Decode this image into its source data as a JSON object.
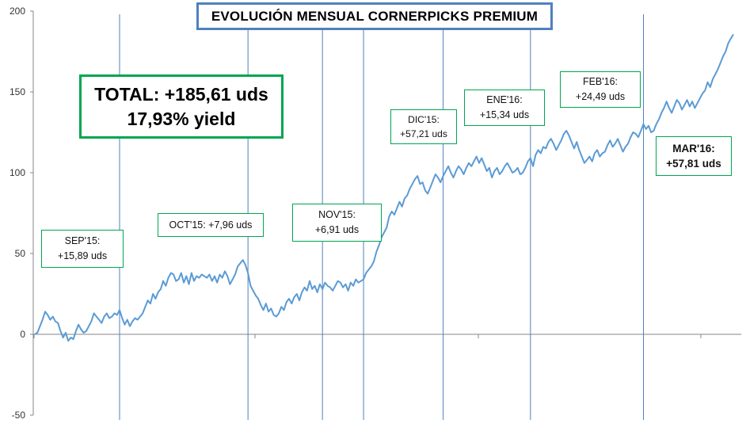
{
  "title": "EVOLUCIÓN MENSUAL CORNERPICKS PREMIUM",
  "total": {
    "line1": "TOTAL: +185,61 uds",
    "line2": "17,93% yield"
  },
  "months": [
    {
      "name": "SEP'15:",
      "value": "+15,89 uds"
    },
    {
      "name": "OCT'15: +7,96 uds",
      "value": ""
    },
    {
      "name": "NOV'15:",
      "value": "+6,91 uds"
    },
    {
      "name": "DIC'15:",
      "value": "+57,21 uds"
    },
    {
      "name": "ENE'16:",
      "value": "+15,34 uds"
    },
    {
      "name": "FEB'16:",
      "value": "+24,49 uds"
    },
    {
      "name": "MAR'16:",
      "value": "+57,81 uds"
    }
  ],
  "colors": {
    "line": "#5b9bd5",
    "separator": "#4f81bd",
    "title_border": "#4f81bd",
    "box_border": "#00a650"
  },
  "chart_data": {
    "type": "line",
    "title": "EVOLUCIÓN MENSUAL CORNERPICKS PREMIUM",
    "xlabel": "",
    "ylabel": "",
    "ylim": [
      -50,
      200
    ],
    "yticks": [
      "200",
      "150",
      "100",
      "50",
      "0",
      "-50"
    ],
    "grid": false,
    "month_boundaries_index": [
      33,
      83,
      112,
      128,
      159,
      193,
      237
    ],
    "series": [
      {
        "values": [
          0,
          1,
          5,
          9,
          14,
          12,
          9,
          11,
          8,
          7,
          2,
          -2,
          1,
          -4,
          -2,
          -3,
          2,
          6,
          3,
          1,
          2,
          5,
          8,
          13,
          11,
          9,
          7,
          11,
          13,
          10,
          11,
          13,
          12,
          15,
          10,
          6,
          9,
          5,
          8,
          10,
          9,
          11,
          13,
          17,
          21,
          19,
          25,
          22,
          26,
          28,
          33,
          30,
          35,
          38,
          37,
          33,
          34,
          38,
          32,
          36,
          31,
          38,
          33,
          36,
          35,
          37,
          36,
          35,
          37,
          33,
          36,
          32,
          37,
          35,
          39,
          36,
          31,
          34,
          37,
          42,
          44,
          46,
          43,
          38,
          30,
          27,
          24,
          22,
          18,
          15,
          19,
          14,
          16,
          12,
          11,
          13,
          17,
          15,
          20,
          22,
          19,
          23,
          25,
          21,
          26,
          29,
          27,
          33,
          28,
          30,
          26,
          31,
          28,
          32,
          30,
          29,
          27,
          30,
          33,
          32,
          29,
          31,
          27,
          32,
          30,
          34,
          32,
          33,
          34,
          38,
          40,
          42,
          45,
          51,
          55,
          60,
          63,
          66,
          73,
          76,
          74,
          78,
          82,
          79,
          84,
          86,
          90,
          93,
          96,
          98,
          93,
          94,
          89,
          87,
          91,
          95,
          99,
          97,
          94,
          98,
          101,
          104,
          100,
          97,
          101,
          104,
          102,
          99,
          103,
          106,
          104,
          107,
          110,
          106,
          109,
          105,
          101,
          103,
          97,
          101,
          103,
          99,
          101,
          104,
          106,
          103,
          100,
          101,
          103,
          99,
          100,
          103,
          107,
          109,
          104,
          111,
          114,
          112,
          116,
          115,
          119,
          121,
          118,
          114,
          117,
          120,
          124,
          126,
          123,
          119,
          115,
          119,
          114,
          110,
          106,
          108,
          110,
          107,
          112,
          114,
          110,
          112,
          113,
          117,
          120,
          116,
          118,
          121,
          117,
          113,
          116,
          118,
          122,
          125,
          124,
          122,
          126,
          130,
          127,
          129,
          125,
          126,
          130,
          133,
          137,
          140,
          144,
          140,
          137,
          141,
          145,
          143,
          139,
          142,
          145,
          141,
          144,
          140,
          143,
          146,
          149,
          151,
          156,
          153,
          158,
          161,
          164,
          168,
          172,
          175,
          180,
          183,
          185.6
        ]
      }
    ]
  }
}
